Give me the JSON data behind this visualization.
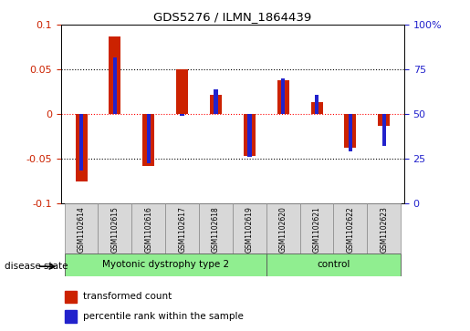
{
  "title": "GDS5276 / ILMN_1864439",
  "samples": [
    "GSM1102614",
    "GSM1102615",
    "GSM1102616",
    "GSM1102617",
    "GSM1102618",
    "GSM1102619",
    "GSM1102620",
    "GSM1102621",
    "GSM1102622",
    "GSM1102623"
  ],
  "red_values": [
    -0.075,
    0.087,
    -0.058,
    0.05,
    0.022,
    -0.047,
    0.038,
    0.013,
    -0.038,
    -0.013
  ],
  "blue_values": [
    -0.063,
    0.063,
    -0.055,
    -0.002,
    0.028,
    -0.048,
    0.04,
    0.022,
    -0.042,
    -0.035
  ],
  "groups": [
    {
      "label": "Myotonic dystrophy type 2",
      "start": 0,
      "end": 6,
      "color": "#90EE90"
    },
    {
      "label": "control",
      "start": 6,
      "end": 10,
      "color": "#90EE90"
    }
  ],
  "ylim": [
    -0.1,
    0.1
  ],
  "yticks_left": [
    -0.1,
    -0.05,
    0.0,
    0.05,
    0.1
  ],
  "yticks_left_labels": [
    "-0.1",
    "-0.05",
    "0",
    "0.05",
    "0.1"
  ],
  "yticks_right_pct": [
    0,
    25,
    50,
    75,
    100
  ],
  "yticks_right_labels": [
    "0",
    "25",
    "50",
    "75",
    "100%"
  ],
  "hlines_black": [
    -0.05,
    0.05
  ],
  "hline_red": 0.0,
  "red_bar_width": 0.35,
  "blue_bar_width": 0.12,
  "red_color": "#CC2200",
  "blue_color": "#2222CC",
  "legend_label_red": "transformed count",
  "legend_label_blue": "percentile rank within the sample",
  "disease_state_label": "disease state",
  "sample_bg_color": "#D8D8D8",
  "group_color": "#90EE90",
  "plot_bg": "#FFFFFF",
  "spine_color": "#000000"
}
